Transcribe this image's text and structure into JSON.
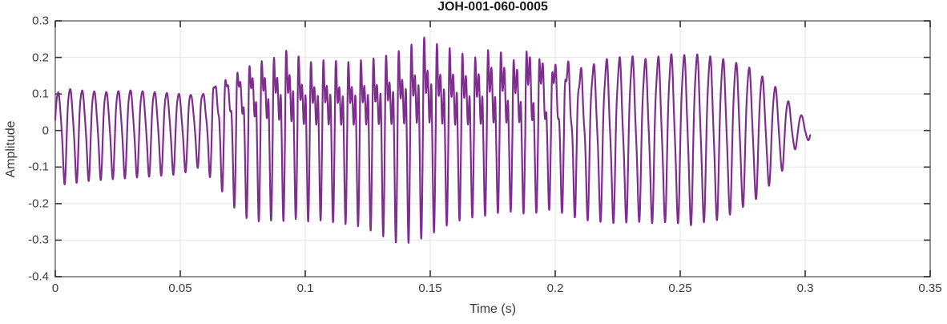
{
  "figure": {
    "title": "JOH-001-060-0005",
    "xlabel": "Time (s)",
    "ylabel": "Amplitude"
  },
  "chart_data": {
    "type": "line",
    "title": "JOH-001-060-0005",
    "xlabel": "Time (s)",
    "ylabel": "Amplitude",
    "xlim": [
      0,
      0.35
    ],
    "ylim": [
      -0.4,
      0.3
    ],
    "xticks": [
      [
        0,
        "0"
      ],
      [
        0.05,
        "0.05"
      ],
      [
        0.1,
        "0.1"
      ],
      [
        0.15,
        "0.15"
      ],
      [
        0.2,
        "0.2"
      ],
      [
        0.25,
        "0.25"
      ],
      [
        0.3,
        "0.3"
      ],
      [
        0.35,
        "0.35"
      ]
    ],
    "yticks": [
      [
        -0.4,
        "-0.4"
      ],
      [
        -0.3,
        "-0.3"
      ],
      [
        -0.2,
        "-0.2"
      ],
      [
        -0.1,
        "-0.1"
      ],
      [
        0,
        "0"
      ],
      [
        0.1,
        "0.1"
      ],
      [
        0.2,
        "0.2"
      ],
      [
        0.3,
        "0.3"
      ]
    ],
    "grid": true,
    "legend_position": "none",
    "line_color": "#7E2F8E",
    "grid_color": "#e6e6e6",
    "border_color": "#878787",
    "tick_color": "#333333",
    "text_color": "#3b3b3b",
    "signal": {
      "description": "speech-like waveform, amplitude vs time, starts at t=0 and ends near t=0.302 s, peak +0.26 near t=0.149 s, deepest trough -0.31 near t=0.14 s",
      "duration_s": 0.302,
      "sample_dt": 0.0001,
      "f0_keypoints": [
        [
          0,
          208
        ],
        [
          0.07,
          205
        ],
        [
          0.15,
          196
        ],
        [
          0.25,
          193
        ],
        [
          0.302,
          190
        ]
      ],
      "pos_envelope": [
        [
          0,
          0.1
        ],
        [
          0.004,
          0.115
        ],
        [
          0.01,
          0.11
        ],
        [
          0.02,
          0.105
        ],
        [
          0.03,
          0.11
        ],
        [
          0.04,
          0.105
        ],
        [
          0.05,
          0.1
        ],
        [
          0.058,
          0.095
        ],
        [
          0.065,
          0.125
        ],
        [
          0.072,
          0.155
        ],
        [
          0.08,
          0.185
        ],
        [
          0.088,
          0.2
        ],
        [
          0.094,
          0.225
        ],
        [
          0.1,
          0.185
        ],
        [
          0.105,
          0.19
        ],
        [
          0.11,
          0.195
        ],
        [
          0.115,
          0.185
        ],
        [
          0.12,
          0.19
        ],
        [
          0.125,
          0.195
        ],
        [
          0.13,
          0.2
        ],
        [
          0.135,
          0.21
        ],
        [
          0.14,
          0.225
        ],
        [
          0.145,
          0.245
        ],
        [
          0.149,
          0.26
        ],
        [
          0.153,
          0.235
        ],
        [
          0.158,
          0.225
        ],
        [
          0.163,
          0.21
        ],
        [
          0.168,
          0.2
        ],
        [
          0.173,
          0.22
        ],
        [
          0.178,
          0.215
        ],
        [
          0.184,
          0.19
        ],
        [
          0.19,
          0.225
        ],
        [
          0.195,
          0.185
        ],
        [
          0.2,
          0.18
        ],
        [
          0.205,
          0.19
        ],
        [
          0.21,
          0.17
        ],
        [
          0.215,
          0.18
        ],
        [
          0.22,
          0.195
        ],
        [
          0.225,
          0.2
        ],
        [
          0.23,
          0.205
        ],
        [
          0.235,
          0.195
        ],
        [
          0.24,
          0.2
        ],
        [
          0.245,
          0.21
        ],
        [
          0.25,
          0.205
        ],
        [
          0.255,
          0.21
        ],
        [
          0.26,
          0.205
        ],
        [
          0.265,
          0.2
        ],
        [
          0.27,
          0.19
        ],
        [
          0.275,
          0.18
        ],
        [
          0.28,
          0.165
        ],
        [
          0.285,
          0.135
        ],
        [
          0.288,
          0.12
        ],
        [
          0.292,
          0.095
        ],
        [
          0.295,
          0.06
        ],
        [
          0.298,
          0.045
        ],
        [
          0.302,
          0.02
        ]
      ],
      "neg_envelope": [
        [
          0,
          0.14
        ],
        [
          0.005,
          0.15
        ],
        [
          0.01,
          0.14
        ],
        [
          0.02,
          0.135
        ],
        [
          0.03,
          0.13
        ],
        [
          0.04,
          0.125
        ],
        [
          0.05,
          0.12
        ],
        [
          0.058,
          0.1
        ],
        [
          0.065,
          0.15
        ],
        [
          0.07,
          0.2
        ],
        [
          0.075,
          0.235
        ],
        [
          0.08,
          0.25
        ],
        [
          0.085,
          0.245
        ],
        [
          0.09,
          0.25
        ],
        [
          0.095,
          0.24
        ],
        [
          0.1,
          0.25
        ],
        [
          0.105,
          0.245
        ],
        [
          0.11,
          0.25
        ],
        [
          0.115,
          0.255
        ],
        [
          0.12,
          0.26
        ],
        [
          0.125,
          0.27
        ],
        [
          0.13,
          0.285
        ],
        [
          0.135,
          0.305
        ],
        [
          0.14,
          0.31
        ],
        [
          0.145,
          0.3
        ],
        [
          0.15,
          0.285
        ],
        [
          0.155,
          0.265
        ],
        [
          0.16,
          0.25
        ],
        [
          0.165,
          0.24
        ],
        [
          0.17,
          0.235
        ],
        [
          0.175,
          0.23
        ],
        [
          0.18,
          0.22
        ],
        [
          0.185,
          0.225
        ],
        [
          0.19,
          0.23
        ],
        [
          0.195,
          0.22
        ],
        [
          0.2,
          0.215
        ],
        [
          0.205,
          0.235
        ],
        [
          0.21,
          0.24
        ],
        [
          0.215,
          0.25
        ],
        [
          0.22,
          0.25
        ],
        [
          0.225,
          0.255
        ],
        [
          0.23,
          0.25
        ],
        [
          0.235,
          0.25
        ],
        [
          0.24,
          0.255
        ],
        [
          0.245,
          0.25
        ],
        [
          0.25,
          0.255
        ],
        [
          0.255,
          0.26
        ],
        [
          0.26,
          0.25
        ],
        [
          0.265,
          0.245
        ],
        [
          0.27,
          0.23
        ],
        [
          0.275,
          0.21
        ],
        [
          0.28,
          0.19
        ],
        [
          0.285,
          0.155
        ],
        [
          0.288,
          0.135
        ],
        [
          0.292,
          0.1
        ],
        [
          0.295,
          0.06
        ],
        [
          0.298,
          0.035
        ],
        [
          0.302,
          0.025
        ]
      ],
      "harmonic2": [
        [
          0,
          0.22
        ],
        [
          0.05,
          0.22
        ],
        [
          0.06,
          0.35
        ],
        [
          0.07,
          0.55
        ],
        [
          0.08,
          0.65
        ],
        [
          0.1,
          0.8
        ],
        [
          0.15,
          0.8
        ],
        [
          0.17,
          0.7
        ],
        [
          0.19,
          0.6
        ],
        [
          0.2,
          0.45
        ],
        [
          0.21,
          0.25
        ],
        [
          0.22,
          0.15
        ],
        [
          0.302,
          0.1
        ]
      ],
      "harmonic3": [
        [
          0,
          0.08
        ],
        [
          0.055,
          0.08
        ],
        [
          0.07,
          0.25
        ],
        [
          0.08,
          0.4
        ],
        [
          0.1,
          0.55
        ],
        [
          0.16,
          0.55
        ],
        [
          0.19,
          0.45
        ],
        [
          0.205,
          0.25
        ],
        [
          0.215,
          0.12
        ],
        [
          0.302,
          0.05
        ]
      ]
    }
  }
}
